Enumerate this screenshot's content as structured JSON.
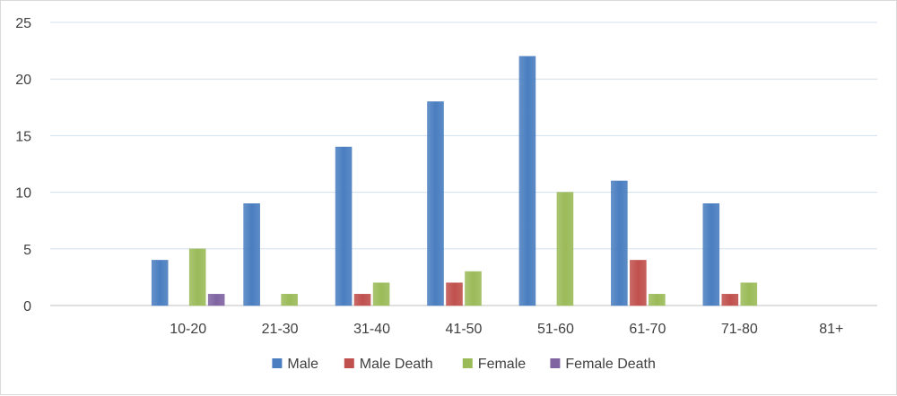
{
  "chart_data": {
    "type": "bar",
    "categories": [
      "",
      "10-20",
      "21-30",
      "31-40",
      "41-50",
      "51-60",
      "61-70",
      "71-80",
      "81+"
    ],
    "series": [
      {
        "name": "Male",
        "color": "#4a7ec0",
        "values": [
          null,
          4,
          9,
          14,
          18,
          22,
          11,
          9,
          0
        ]
      },
      {
        "name": "Male Death",
        "color": "#c0504d",
        "values": [
          null,
          0,
          0,
          1,
          2,
          0,
          4,
          1,
          0
        ]
      },
      {
        "name": "Female",
        "color": "#9bbb59",
        "values": [
          null,
          5,
          1,
          2,
          3,
          10,
          1,
          2,
          0
        ]
      },
      {
        "name": "Female Death",
        "color": "#8064a2",
        "values": [
          null,
          1,
          0,
          0,
          0,
          0,
          0,
          0,
          0
        ]
      }
    ],
    "y_ticks": [
      "0",
      "5",
      "10",
      "15",
      "20",
      "25"
    ],
    "ylim": [
      0,
      25
    ],
    "grid": true,
    "legend_position": "bottom",
    "title": "",
    "xlabel": "",
    "ylabel": ""
  }
}
